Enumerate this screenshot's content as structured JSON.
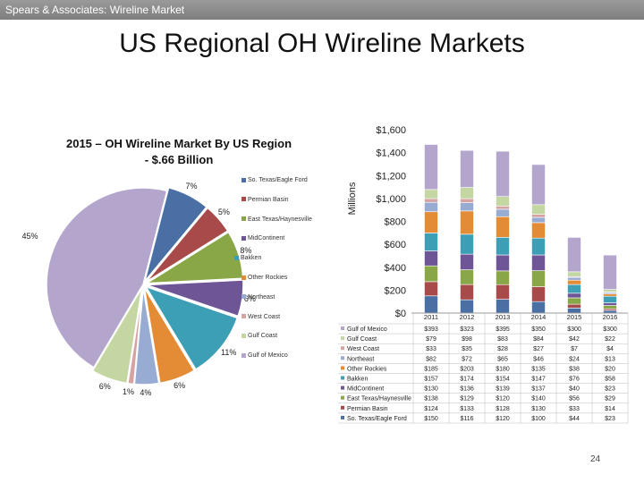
{
  "header": {
    "bar_text": "Spears & Associates:  Wireline Market",
    "title": "US Regional OH Wireline Markets",
    "page_number": "24"
  },
  "regions": [
    {
      "name": "So. Texas/Eagle Ford",
      "color": "#4a6fa5"
    },
    {
      "name": "Permian Basin",
      "color": "#a84a49"
    },
    {
      "name": "East Texas/Haynesville",
      "color": "#8aa748"
    },
    {
      "name": "MidContinent",
      "color": "#6e5596"
    },
    {
      "name": "Bakken",
      "color": "#3d9fb5"
    },
    {
      "name": "Other Rockies",
      "color": "#e48b35"
    },
    {
      "name": "Northeast",
      "color": "#98acd3"
    },
    {
      "name": "West Coast",
      "color": "#d6a3a3"
    },
    {
      "name": "Gulf Coast",
      "color": "#c4d6a2"
    },
    {
      "name": "Gulf of Mexico",
      "color": "#b3a5cc"
    }
  ],
  "chart_data": [
    {
      "type": "pie",
      "title": "2015 – OH Wireline Market By US Region\n- $.66 Billion",
      "labels": [
        "So. Texas/Eagle Ford",
        "Permian Basin",
        "East Texas/Haynesville",
        "MidContinent",
        "Bakken",
        "Other Rockies",
        "Northeast",
        "West Coast",
        "Gulf Coast",
        "Gulf of Mexico"
      ],
      "values": [
        7,
        5,
        8,
        6,
        11,
        6,
        4,
        1,
        6,
        45
      ],
      "value_labels": [
        "7%",
        "5%",
        "8%",
        "6%",
        "11%",
        "6%",
        "4%",
        "1%",
        "6%",
        "45%"
      ],
      "legend_position": "right"
    },
    {
      "type": "bar",
      "stacked": true,
      "ylabel": "Millions",
      "ylim": [
        0,
        1600
      ],
      "yticks": [
        0,
        200,
        400,
        600,
        800,
        1000,
        1200,
        1400,
        1600
      ],
      "ytick_labels": [
        "$0",
        "$200",
        "$400",
        "$600",
        "$800",
        "$1,000",
        "$1,200",
        "$1,400",
        "$1,600"
      ],
      "categories": [
        "2011",
        "2012",
        "2013",
        "2014",
        "2015",
        "2016"
      ],
      "series": [
        {
          "name": "Gulf of Mexico",
          "values": [
            393,
            323,
            395,
            350,
            300,
            300
          ],
          "labels": [
            "$393",
            "$323",
            "$395",
            "$350",
            "$300",
            "$300"
          ]
        },
        {
          "name": "Gulf Coast",
          "values": [
            79,
            98,
            83,
            84,
            42,
            22
          ],
          "labels": [
            "$79",
            "$98",
            "$83",
            "$84",
            "$42",
            "$22"
          ]
        },
        {
          "name": "West Coast",
          "values": [
            33,
            35,
            28,
            27,
            7,
            4
          ],
          "labels": [
            "$33",
            "$35",
            "$28",
            "$27",
            "$7",
            "$4"
          ]
        },
        {
          "name": "Northeast",
          "values": [
            82,
            72,
            65,
            46,
            24,
            13
          ],
          "labels": [
            "$82",
            "$72",
            "$65",
            "$46",
            "$24",
            "$13"
          ]
        },
        {
          "name": "Other Rockies",
          "values": [
            185,
            203,
            180,
            135,
            38,
            20
          ],
          "labels": [
            "$185",
            "$203",
            "$180",
            "$135",
            "$38",
            "$20"
          ]
        },
        {
          "name": "Bakken",
          "values": [
            157,
            174,
            154,
            147,
            76,
            58
          ],
          "labels": [
            "$157",
            "$174",
            "$154",
            "$147",
            "$76",
            "$58"
          ]
        },
        {
          "name": "MidContinent",
          "values": [
            130,
            136,
            139,
            137,
            40,
            23
          ],
          "labels": [
            "$130",
            "$136",
            "$139",
            "$137",
            "$40",
            "$23"
          ]
        },
        {
          "name": "East Texas/Haynesville",
          "values": [
            138,
            129,
            120,
            140,
            56,
            29
          ],
          "labels": [
            "$138",
            "$129",
            "$120",
            "$140",
            "$56",
            "$29"
          ]
        },
        {
          "name": "Permian Basin",
          "values": [
            124,
            133,
            128,
            130,
            33,
            14
          ],
          "labels": [
            "$124",
            "$133",
            "$128",
            "$130",
            "$33",
            "$14"
          ]
        },
        {
          "name": "So. Texas/Eagle Ford",
          "values": [
            150,
            116,
            120,
            100,
            44,
            23
          ],
          "labels": [
            "$150",
            "$116",
            "$120",
            "$100",
            "$44",
            "$23"
          ]
        }
      ]
    }
  ]
}
